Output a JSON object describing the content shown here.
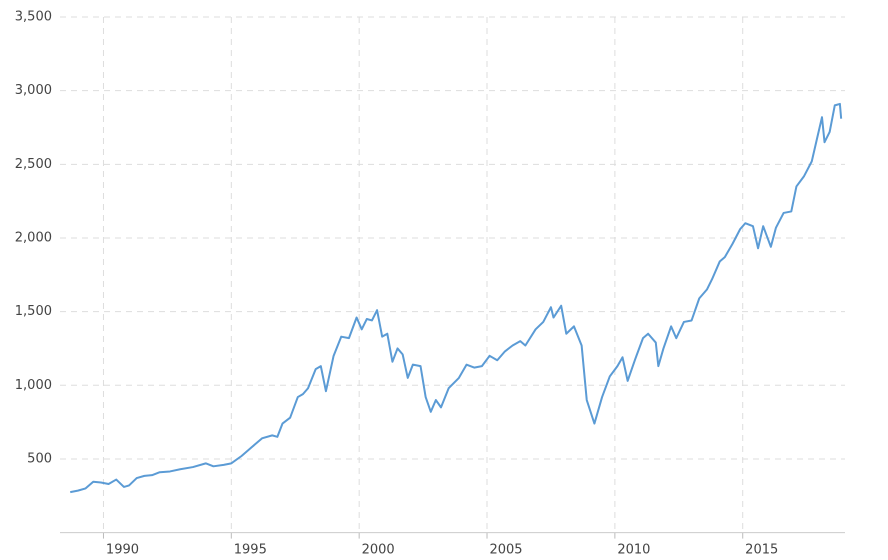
{
  "chart_data": {
    "type": "line",
    "x": [
      1988.7,
      1989.0,
      1989.3,
      1989.6,
      1989.9,
      1990.2,
      1990.5,
      1990.8,
      1991.0,
      1991.3,
      1991.6,
      1991.9,
      1992.2,
      1992.6,
      1993.0,
      1993.5,
      1994.0,
      1994.3,
      1994.7,
      1995.0,
      1995.4,
      1995.8,
      1996.2,
      1996.6,
      1996.8,
      1997.0,
      1997.3,
      1997.6,
      1997.8,
      1998.0,
      1998.3,
      1998.5,
      1998.7,
      1999.0,
      1999.3,
      1999.6,
      1999.9,
      2000.1,
      2000.3,
      2000.5,
      2000.7,
      2000.9,
      2001.1,
      2001.3,
      2001.5,
      2001.7,
      2001.9,
      2002.1,
      2002.4,
      2002.6,
      2002.8,
      2003.0,
      2003.2,
      2003.5,
      2003.9,
      2004.2,
      2004.5,
      2004.8,
      2005.1,
      2005.4,
      2005.7,
      2006.0,
      2006.3,
      2006.5,
      2006.9,
      2007.2,
      2007.5,
      2007.6,
      2007.9,
      2008.1,
      2008.4,
      2008.7,
      2008.9,
      2009.2,
      2009.5,
      2009.8,
      2010.1,
      2010.3,
      2010.5,
      2010.8,
      2011.1,
      2011.3,
      2011.6,
      2011.7,
      2011.9,
      2012.2,
      2012.4,
      2012.7,
      2013.0,
      2013.3,
      2013.6,
      2013.8,
      2014.1,
      2014.3,
      2014.6,
      2014.9,
      2015.1,
      2015.4,
      2015.6,
      2015.8,
      2016.1,
      2016.3,
      2016.6,
      2016.9,
      2017.1,
      2017.4,
      2017.7,
      2017.9,
      2018.1,
      2018.2,
      2018.4,
      2018.6,
      2018.8,
      2018.85
    ],
    "series": [
      {
        "color": "#5b9bd5",
        "values": [
          275,
          285,
          300,
          345,
          340,
          330,
          360,
          310,
          320,
          370,
          385,
          390,
          410,
          415,
          430,
          445,
          470,
          450,
          460,
          470,
          520,
          580,
          640,
          660,
          650,
          740,
          780,
          920,
          940,
          980,
          1110,
          1130,
          960,
          1200,
          1330,
          1320,
          1460,
          1380,
          1450,
          1440,
          1510,
          1330,
          1350,
          1160,
          1250,
          1210,
          1050,
          1140,
          1130,
          920,
          820,
          900,
          850,
          980,
          1050,
          1140,
          1120,
          1130,
          1200,
          1170,
          1230,
          1270,
          1300,
          1270,
          1380,
          1430,
          1530,
          1460,
          1540,
          1350,
          1400,
          1270,
          900,
          740,
          920,
          1060,
          1130,
          1190,
          1030,
          1180,
          1320,
          1350,
          1290,
          1130,
          1250,
          1400,
          1320,
          1430,
          1440,
          1590,
          1650,
          1720,
          1840,
          1870,
          1960,
          2060,
          2100,
          2080,
          1930,
          2080,
          1940,
          2070,
          2170,
          2180,
          2350,
          2420,
          2520,
          2670,
          2820,
          2650,
          2720,
          2900,
          2910,
          2810
        ]
      }
    ],
    "xlim": [
      1988.3,
      2019
    ],
    "xticks": [
      1990,
      1995,
      2000,
      2005,
      2010,
      2015
    ],
    "ylim": [
      0,
      3500
    ],
    "yticks": [
      500,
      {
        "value": 1000,
        "label": "1,000"
      },
      {
        "value": 1500,
        "label": "1,500"
      },
      {
        "value": 2000,
        "label": "2,000"
      },
      {
        "value": 2500,
        "label": "2,500"
      },
      {
        "value": 3000,
        "label": "3,000"
      },
      {
        "value": 3500,
        "label": "3,500"
      }
    ],
    "grid": true
  }
}
